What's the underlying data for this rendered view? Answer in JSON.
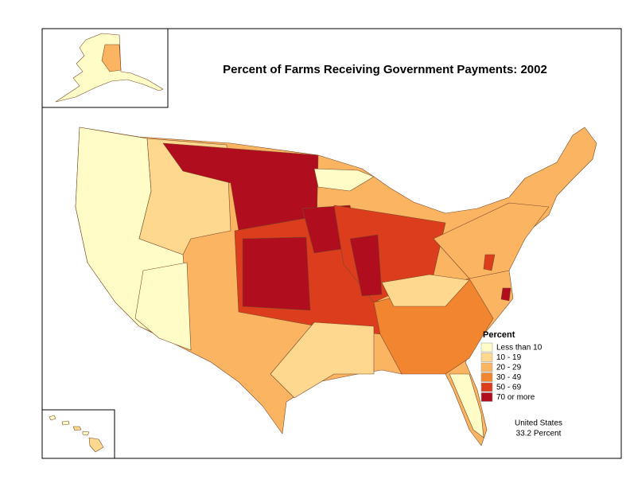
{
  "title": "Percent of Farms Receiving Government Payments:  2002",
  "legend": {
    "title": "Percent",
    "items": [
      {
        "label": "Less than 10",
        "color": "#fffcc8"
      },
      {
        "label": "10 - 19",
        "color": "#fdd88e"
      },
      {
        "label": "20 - 29",
        "color": "#fbb462"
      },
      {
        "label": "30 - 49",
        "color": "#f2852f"
      },
      {
        "label": "50 - 69",
        "color": "#dc3d1c"
      },
      {
        "label": "70 or more",
        "color": "#b00d1e"
      }
    ]
  },
  "note": [
    "United States",
    "33.2 Percent"
  ]
}
